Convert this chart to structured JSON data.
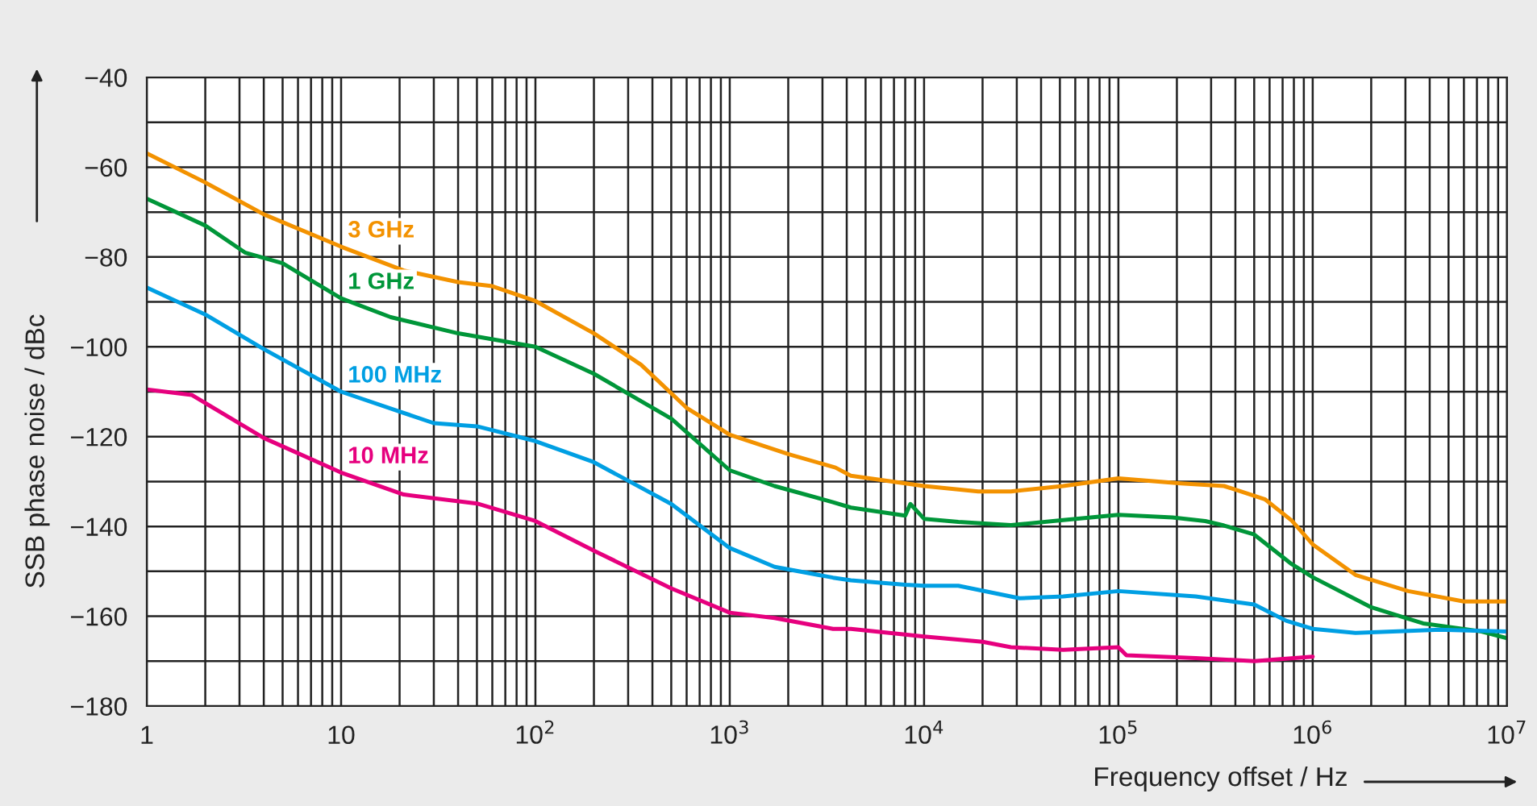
{
  "chart_data": {
    "type": "line",
    "xlabel": "Frequency offset / Hz",
    "ylabel": "SSB phase noise / dBc",
    "log": "x",
    "grid": true,
    "legend": false,
    "marker": "none",
    "line_style": "solid",
    "xlim": [
      1,
      10000000
    ],
    "ylim": [
      -180,
      -40
    ],
    "xticks": [
      {
        "value": 1,
        "label": "1"
      },
      {
        "value": 2,
        "label": null
      },
      {
        "value": 3,
        "label": null
      },
      {
        "value": 4,
        "label": null
      },
      {
        "value": 5,
        "label": null
      },
      {
        "value": 6,
        "label": null
      },
      {
        "value": 7,
        "label": null
      },
      {
        "value": 8,
        "label": null
      },
      {
        "value": 9,
        "label": null
      },
      {
        "value": 10,
        "label": "10"
      },
      {
        "value": 20,
        "label": null
      },
      {
        "value": 30,
        "label": null
      },
      {
        "value": 40,
        "label": null
      },
      {
        "value": 50,
        "label": null
      },
      {
        "value": 60,
        "label": null
      },
      {
        "value": 70,
        "label": null
      },
      {
        "value": 80,
        "label": null
      },
      {
        "value": 90,
        "label": null
      },
      {
        "value": 100,
        "label": "10$^{2}$"
      },
      {
        "value": 200,
        "label": null
      },
      {
        "value": 300,
        "label": null
      },
      {
        "value": 400,
        "label": null
      },
      {
        "value": 500,
        "label": null
      },
      {
        "value": 600,
        "label": null
      },
      {
        "value": 700,
        "label": null
      },
      {
        "value": 800,
        "label": null
      },
      {
        "value": 900,
        "label": null
      },
      {
        "value": 1000,
        "label": "10$^{3}$"
      },
      {
        "value": 2000,
        "label": null
      },
      {
        "value": 3000,
        "label": null
      },
      {
        "value": 4000,
        "label": null
      },
      {
        "value": 5000,
        "label": null
      },
      {
        "value": 6000,
        "label": null
      },
      {
        "value": 7000,
        "label": null
      },
      {
        "value": 8000,
        "label": null
      },
      {
        "value": 9000,
        "label": null
      },
      {
        "value": 10000,
        "label": "10$^{4}$"
      },
      {
        "value": 20000,
        "label": null
      },
      {
        "value": 30000,
        "label": null
      },
      {
        "value": 40000,
        "label": null
      },
      {
        "value": 50000,
        "label": null
      },
      {
        "value": 60000,
        "label": null
      },
      {
        "value": 70000,
        "label": null
      },
      {
        "value": 80000,
        "label": null
      },
      {
        "value": 90000,
        "label": null
      },
      {
        "value": 100000,
        "label": "10$^{5}$"
      },
      {
        "value": 200000,
        "label": null
      },
      {
        "value": 300000,
        "label": null
      },
      {
        "value": 400000,
        "label": null
      },
      {
        "value": 500000,
        "label": null
      },
      {
        "value": 600000,
        "label": null
      },
      {
        "value": 700000,
        "label": null
      },
      {
        "value": 800000,
        "label": null
      },
      {
        "value": 900000,
        "label": null
      },
      {
        "value": 1000000,
        "label": "10$^{6}$"
      },
      {
        "value": 2000000,
        "label": null
      },
      {
        "value": 3000000,
        "label": null
      },
      {
        "value": 4000000,
        "label": null
      },
      {
        "value": 5000000,
        "label": null
      },
      {
        "value": 6000000,
        "label": null
      },
      {
        "value": 7000000,
        "label": null
      },
      {
        "value": 8000000,
        "label": null
      },
      {
        "value": 9000000,
        "label": null
      },
      {
        "value": 10000000,
        "label": "10$^{7}$"
      }
    ],
    "yticks": [
      {
        "value": -180,
        "label": "−180"
      },
      {
        "value": -170,
        "label": null
      },
      {
        "value": -160,
        "label": "−160"
      },
      {
        "value": -150,
        "label": null
      },
      {
        "value": -140,
        "label": "−140"
      },
      {
        "value": -130,
        "label": null
      },
      {
        "value": -120,
        "label": "−120"
      },
      {
        "value": -110,
        "label": null
      },
      {
        "value": -100,
        "label": "−100"
      },
      {
        "value": -90,
        "label": null
      },
      {
        "value": -80,
        "label": "−80"
      },
      {
        "value": -70,
        "label": null
      },
      {
        "value": -60,
        "label": "−60"
      },
      {
        "value": -50,
        "label": null
      },
      {
        "value": -40,
        "label": "−40"
      }
    ],
    "series": [
      {
        "name": "3 GHz",
        "color": "#f39200",
        "x": [
          1,
          2,
          4,
          10,
          21,
          40,
          60,
          100,
          200,
          350,
          600,
          1000,
          2000,
          3500,
          4200,
          10000,
          19000,
          28000,
          52000,
          100000,
          210000,
          350000,
          570000,
          780000,
          1000000,
          1660000,
          3100000,
          6000000,
          10000000
        ],
        "values": [
          -56.9,
          -63.4,
          -70.5,
          -77.7,
          -83,
          -85.6,
          -86.5,
          -89.8,
          -97,
          -104,
          -113.6,
          -119.6,
          -123.9,
          -126.9,
          -128.7,
          -131,
          -132.2,
          -132.2,
          -131,
          -129.3,
          -130.4,
          -131,
          -134,
          -138.7,
          -144,
          -150.8,
          -154.4,
          -156.7,
          -156.7
        ]
      },
      {
        "name": "1 GHz",
        "color": "#009639",
        "x": [
          1,
          2,
          3.2,
          5,
          10,
          18,
          40,
          100,
          200,
          500,
          1000,
          1700,
          3400,
          4200,
          8000,
          8500,
          10000,
          15000,
          28000,
          52000,
          100000,
          190000,
          280000,
          350000,
          500000,
          780000,
          1000000,
          2000000,
          3700000,
          7400000,
          10000000
        ],
        "values": [
          -67,
          -73,
          -79,
          -81.4,
          -89.2,
          -93.4,
          -97,
          -100,
          -106,
          -116,
          -127.5,
          -131,
          -134.6,
          -135.8,
          -137.6,
          -135,
          -138.3,
          -139,
          -139.7,
          -138.6,
          -137.4,
          -138,
          -138.8,
          -139.8,
          -141.8,
          -148.4,
          -151.3,
          -158,
          -161.6,
          -163.4,
          -164.9
        ]
      },
      {
        "name": "100 MHz",
        "color": "#009fe3",
        "x": [
          1,
          2,
          4,
          10,
          30,
          50,
          100,
          200,
          500,
          1000,
          1700,
          3400,
          4200,
          8000,
          10000,
          15000,
          31000,
          52000,
          100000,
          250000,
          500000,
          730000,
          1000000,
          1660000,
          4400000,
          10000000
        ],
        "values": [
          -86.8,
          -92.8,
          -100.5,
          -110,
          -117,
          -117.7,
          -121,
          -125.7,
          -135,
          -144.8,
          -149,
          -151.4,
          -152,
          -153,
          -153.2,
          -153.2,
          -156,
          -155.6,
          -154.4,
          -155.6,
          -157.4,
          -161,
          -162.8,
          -163.7,
          -163,
          -163.4
        ]
      },
      {
        "name": "10 MHz",
        "color": "#e6007e",
        "x": [
          1,
          1.7,
          4,
          10,
          21,
          50,
          100,
          200,
          500,
          1000,
          1700,
          3400,
          4200,
          10000,
          20000,
          28000,
          52000,
          100000,
          110000,
          250000,
          500000,
          1000000
        ],
        "values": [
          -109.5,
          -110.7,
          -120.3,
          -128,
          -132.9,
          -134.9,
          -138.8,
          -145.4,
          -153.8,
          -159.2,
          -160.4,
          -162.8,
          -162.8,
          -164.5,
          -165.7,
          -166.9,
          -167.5,
          -166.9,
          -168.7,
          -169.3,
          -170,
          -169
        ]
      }
    ]
  }
}
